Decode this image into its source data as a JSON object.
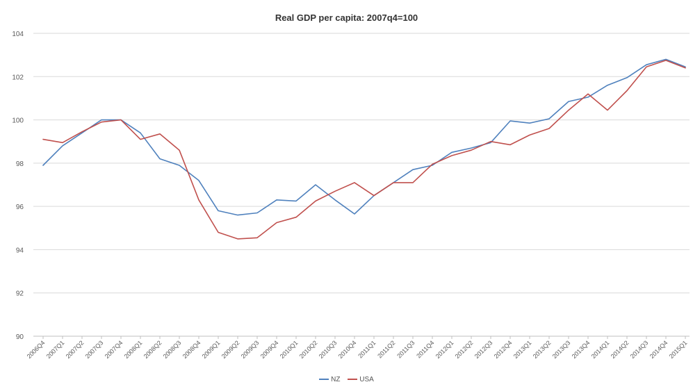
{
  "chart_data": {
    "type": "line",
    "title": "Real GDP per capita: 2007q4=100",
    "xlabel": "",
    "ylabel": "",
    "ylim": [
      90,
      104
    ],
    "yticks": [
      90,
      92,
      94,
      96,
      98,
      100,
      102,
      104
    ],
    "grid": true,
    "legend_position": "bottom",
    "categories": [
      "2006Q4",
      "2007Q1",
      "2007Q2",
      "2007Q3",
      "2007Q4",
      "2008Q1",
      "2008Q2",
      "2008Q3",
      "2008Q4",
      "2009Q1",
      "2009Q2",
      "2009Q3",
      "2009Q4",
      "2010Q1",
      "2010Q2",
      "2010Q3",
      "2010Q4",
      "2011Q1",
      "2011Q2",
      "2011Q3",
      "2011Q4",
      "2012Q1",
      "2012Q2",
      "2012Q3",
      "2012Q4",
      "2013Q1",
      "2013Q2",
      "2013Q3",
      "2013Q4",
      "2014Q1",
      "2014Q2",
      "2014Q3",
      "2014Q4",
      "2015Q1"
    ],
    "series": [
      {
        "name": "NZ",
        "color": "#4f81bd",
        "values": [
          97.9,
          98.8,
          99.4,
          100.0,
          100.0,
          99.4,
          98.2,
          97.9,
          97.2,
          95.8,
          95.6,
          95.7,
          96.3,
          96.25,
          97.0,
          96.3,
          95.65,
          96.5,
          97.1,
          97.7,
          97.9,
          98.5,
          98.7,
          98.95,
          99.95,
          99.85,
          100.05,
          100.85,
          101.05,
          101.6,
          101.95,
          102.55,
          102.8,
          102.45
        ]
      },
      {
        "name": "USA",
        "color": "#c0504d",
        "values": [
          99.1,
          98.95,
          99.45,
          99.9,
          100.0,
          99.1,
          99.35,
          98.6,
          96.3,
          94.8,
          94.5,
          94.55,
          95.25,
          95.5,
          96.25,
          96.7,
          97.1,
          96.5,
          97.1,
          97.1,
          97.95,
          98.35,
          98.6,
          99.0,
          98.85,
          99.3,
          99.6,
          100.45,
          101.2,
          100.45,
          101.35,
          102.45,
          102.75,
          102.4
        ]
      }
    ]
  }
}
